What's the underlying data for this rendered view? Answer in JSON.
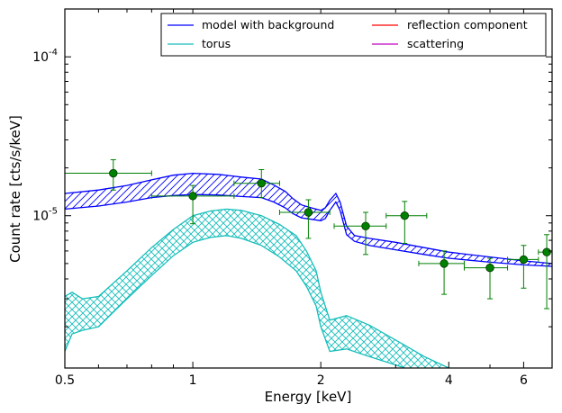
{
  "chart_data": {
    "type": "line",
    "title": "",
    "xlabel": "Energy [keV]",
    "ylabel": "Count rate [cts/s/keV]",
    "x_scale": "log",
    "y_scale": "log",
    "xlim": [
      0.5,
      7.0
    ],
    "ylim": [
      1.1e-06,
      0.0002
    ],
    "grid": false,
    "legend_position": "top-right",
    "x_ticks": [
      {
        "value": 0.5,
        "label": "0.5"
      },
      {
        "value": 1,
        "label": "1"
      },
      {
        "value": 2,
        "label": "2"
      },
      {
        "value": 4,
        "label": "4"
      },
      {
        "value": 6,
        "label": "6"
      }
    ],
    "y_ticks": [
      {
        "value": 1e-05,
        "base": "10",
        "exponent": "-5"
      },
      {
        "value": 0.0001,
        "base": "10",
        "exponent": "-4"
      }
    ],
    "legend": [
      {
        "name": "model with background",
        "color": "#0000ff"
      },
      {
        "name": "torus",
        "color": "#17bebb"
      },
      {
        "name": "reflection component",
        "color": "#ff0000"
      },
      {
        "name": "scattering",
        "color": "#c000c0"
      }
    ],
    "series": [
      {
        "name": "model with background",
        "color": "#0000ff",
        "hatch": "diagonal",
        "x": [
          0.5,
          0.6,
          0.7,
          0.8,
          0.9,
          1.0,
          1.15,
          1.3,
          1.45,
          1.55,
          1.65,
          1.72,
          1.8,
          1.9,
          2.0,
          2.05,
          2.1,
          2.17,
          2.22,
          2.3,
          2.4,
          2.6,
          3.0,
          3.5,
          4.0,
          5.0,
          6.0,
          7.0
        ],
        "upper": [
          1.38e-05,
          1.45e-05,
          1.55e-05,
          1.68e-05,
          1.8e-05,
          1.85e-05,
          1.82e-05,
          1.75e-05,
          1.7e-05,
          1.56e-05,
          1.42e-05,
          1.28e-05,
          1.17e-05,
          1.12e-05,
          1.08e-05,
          1.12e-05,
          1.25e-05,
          1.38e-05,
          1.22e-05,
          8.6e-06,
          7.5e-06,
          7.2e-06,
          6.8e-06,
          6.3e-06,
          5.9e-06,
          5.5e-06,
          5.2e-06,
          5e-06
        ],
        "lower": [
          1.1e-05,
          1.15e-05,
          1.22e-05,
          1.3e-05,
          1.34e-05,
          1.36e-05,
          1.35e-05,
          1.32e-05,
          1.3e-05,
          1.22e-05,
          1.12e-05,
          1.03e-05,
          9.7e-06,
          9.5e-06,
          9.3e-06,
          9.6e-06,
          1.08e-05,
          1.22e-05,
          1.08e-05,
          7.6e-06,
          6.9e-06,
          6.5e-06,
          6.1e-06,
          5.7e-06,
          5.4e-06,
          5.1e-06,
          4.9e-06,
          4.8e-06
        ]
      },
      {
        "name": "torus",
        "color": "#17bebb",
        "hatch": "cross",
        "x": [
          0.5,
          0.52,
          0.55,
          0.6,
          0.7,
          0.8,
          0.9,
          1.0,
          1.1,
          1.2,
          1.3,
          1.45,
          1.6,
          1.75,
          1.85,
          1.95,
          2.0,
          2.1,
          2.3,
          2.6,
          3.0,
          3.5,
          4.0,
          4.5
        ],
        "upper": [
          3.1e-06,
          3.3e-06,
          3e-06,
          3.1e-06,
          4.5e-06,
          6.3e-06,
          8.2e-06,
          1e-05,
          1.07e-05,
          1.1e-05,
          1.08e-05,
          1e-05,
          8.8e-06,
          7.5e-06,
          6e-06,
          4.5e-06,
          3.3e-06,
          2.2e-06,
          2.35e-06,
          2.05e-06,
          1.65e-06,
          1.3e-06,
          1.1e-06,
          1e-06
        ],
        "lower": [
          1.4e-06,
          1.8e-06,
          1.9e-06,
          2e-06,
          3e-06,
          4.2e-06,
          5.6e-06,
          6.8e-06,
          7.3e-06,
          7.5e-06,
          7.2e-06,
          6.5e-06,
          5.5e-06,
          4.5e-06,
          3.6e-06,
          2.7e-06,
          2e-06,
          1.4e-06,
          1.45e-06,
          1.3e-06,
          1.15e-06,
          1e-06,
          9e-07,
          8e-07
        ]
      },
      {
        "name": "data",
        "color": "#008000",
        "points": [
          {
            "x": 0.65,
            "y": 1.85e-05,
            "xlo": 0.5,
            "xhi": 0.8,
            "ylo": 1.45e-05,
            "yhi": 2.25e-05
          },
          {
            "x": 1.0,
            "y": 1.33e-05,
            "xlo": 0.8,
            "xhi": 1.25,
            "ylo": 8.9e-06,
            "yhi": 1.55e-05
          },
          {
            "x": 1.45,
            "y": 1.6e-05,
            "xlo": 1.25,
            "xhi": 1.6,
            "ylo": 1.3e-05,
            "yhi": 1.95e-05
          },
          {
            "x": 1.87,
            "y": 1.05e-05,
            "xlo": 1.6,
            "xhi": 2.1,
            "ylo": 7.2e-06,
            "yhi": 1.26e-05
          },
          {
            "x": 2.55,
            "y": 8.6e-06,
            "xlo": 2.15,
            "xhi": 2.85,
            "ylo": 5.7e-06,
            "yhi": 1.05e-05
          },
          {
            "x": 3.15,
            "y": 1e-05,
            "xlo": 2.85,
            "xhi": 3.55,
            "ylo": 6.7e-06,
            "yhi": 1.23e-05
          },
          {
            "x": 3.9,
            "y": 5e-06,
            "xlo": 3.4,
            "xhi": 4.35,
            "ylo": 3.2e-06,
            "yhi": 6e-06
          },
          {
            "x": 5.0,
            "y": 4.7e-06,
            "xlo": 4.35,
            "xhi": 5.5,
            "ylo": 3e-06,
            "yhi": 5.4e-06
          },
          {
            "x": 6.0,
            "y": 5.3e-06,
            "xlo": 5.5,
            "xhi": 6.5,
            "ylo": 3.5e-06,
            "yhi": 6.5e-06
          },
          {
            "x": 6.8,
            "y": 5.9e-06,
            "xlo": 6.5,
            "xhi": 7.0,
            "ylo": 2.6e-06,
            "yhi": 7.6e-06
          }
        ]
      }
    ]
  }
}
